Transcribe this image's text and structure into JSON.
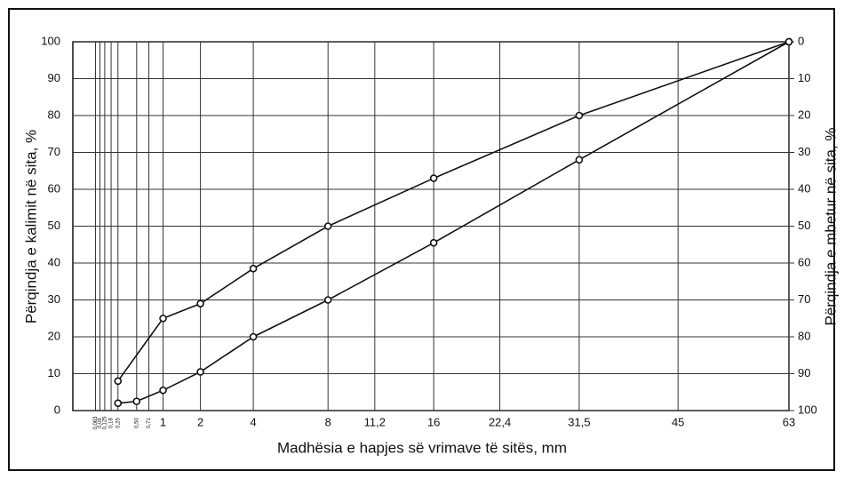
{
  "chart_data": {
    "type": "line",
    "x_label": "Madhësia e hapjes së vrimave të sitës, mm",
    "y_label": "Përqindja e kalimit në sita, %",
    "y2_label": "Përqindja e mbetur në sita, %",
    "xscale": "sqrt",
    "xlim": [
      0,
      63
    ],
    "xticks": [
      {
        "value": 0.063,
        "label": "0,063"
      },
      {
        "value": 0.09,
        "label": "0,09"
      },
      {
        "value": 0.125,
        "label": "0,125"
      },
      {
        "value": 0.18,
        "label": "0,18"
      },
      {
        "value": 0.25,
        "label": "0,25"
      },
      {
        "value": 0.5,
        "label": "0,50"
      },
      {
        "value": 0.71,
        "label": "0,71"
      },
      1,
      2,
      4,
      8,
      {
        "value": 11.2,
        "label": "11,2"
      },
      16,
      {
        "value": 22.4,
        "label": "22,4"
      },
      {
        "value": 31.5,
        "label": "31,5"
      },
      45,
      63
    ],
    "ylim": [
      0,
      100
    ],
    "yticks": [
      0,
      10,
      20,
      30,
      40,
      50,
      60,
      70,
      80,
      90,
      100
    ],
    "y2lim": [
      100,
      0
    ],
    "y2ticks": [
      0,
      10,
      20,
      30,
      40,
      50,
      60,
      70,
      80,
      90,
      100
    ],
    "grid": true,
    "series": [
      {
        "color": "#111111",
        "x": [
          0.25,
          1,
          2,
          4,
          8,
          16,
          31.5,
          63
        ],
        "values": [
          8,
          25,
          29,
          38.5,
          50,
          63,
          80,
          100
        ]
      },
      {
        "color": "#111111",
        "x": [
          0.25,
          0.5,
          1,
          2,
          4,
          8,
          16,
          31.5,
          63
        ],
        "values": [
          2,
          2.5,
          5.5,
          10.5,
          20,
          30,
          45.5,
          68,
          100
        ]
      }
    ]
  }
}
